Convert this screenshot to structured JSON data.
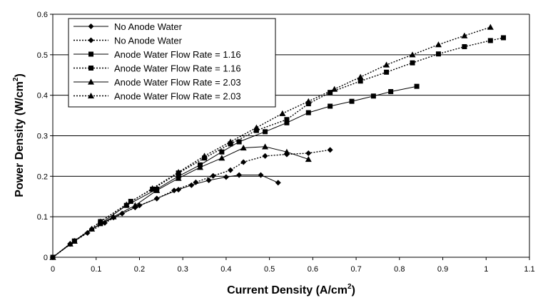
{
  "chart_data": {
    "type": "line",
    "xlabel": "Current Density (A/cm",
    "xlabel_sup": "2",
    "xlabel_end": ")",
    "ylabel": "Power Density (W/cm",
    "ylabel_sup": "2",
    "ylabel_end": ")",
    "xlim": [
      0,
      1.1
    ],
    "ylim": [
      0,
      0.6
    ],
    "x_ticks": [
      "0",
      "0.1",
      "0.2",
      "0.3",
      "0.4",
      "0.5",
      "0.6",
      "0.7",
      "0.8",
      "0.9",
      "1",
      "1.1"
    ],
    "y_ticks": [
      "0",
      "0.1",
      "0.2",
      "0.3",
      "0.4",
      "0.5",
      "0.6"
    ],
    "grid": "horizontal",
    "legend_position": "top-left",
    "series": [
      {
        "name": "No Anode Water",
        "marker": "diamond",
        "line": "solid",
        "x": [
          0,
          0.04,
          0.09,
          0.14,
          0.19,
          0.24,
          0.29,
          0.32,
          0.36,
          0.4,
          0.43,
          0.48,
          0.52
        ],
        "y": [
          0,
          0.033,
          0.07,
          0.098,
          0.123,
          0.145,
          0.167,
          0.178,
          0.19,
          0.198,
          0.203,
          0.203,
          0.184
        ]
      },
      {
        "name": "No Anode Water",
        "marker": "diamond",
        "line": "dotted",
        "x": [
          0,
          0.04,
          0.08,
          0.12,
          0.16,
          0.2,
          0.24,
          0.28,
          0.33,
          0.37,
          0.41,
          0.44,
          0.49,
          0.54,
          0.59,
          0.64
        ],
        "y": [
          0,
          0.033,
          0.06,
          0.085,
          0.108,
          0.128,
          0.145,
          0.165,
          0.185,
          0.201,
          0.215,
          0.235,
          0.25,
          0.254,
          0.257,
          0.265
        ]
      },
      {
        "name": "Anode Water Flow Rate = 1.16",
        "marker": "square",
        "line": "solid",
        "x": [
          0,
          0.05,
          0.11,
          0.17,
          0.24,
          0.29,
          0.34,
          0.39,
          0.43,
          0.49,
          0.54,
          0.59,
          0.64,
          0.69,
          0.74,
          0.78,
          0.84
        ],
        "y": [
          0,
          0.04,
          0.083,
          0.128,
          0.168,
          0.2,
          0.228,
          0.26,
          0.285,
          0.31,
          0.332,
          0.357,
          0.373,
          0.385,
          0.398,
          0.409,
          0.422
        ]
      },
      {
        "name": "Anode Water Flow Rate = 1.16",
        "marker": "square",
        "line": "dotted",
        "x": [
          0,
          0.05,
          0.11,
          0.18,
          0.23,
          0.29,
          0.35,
          0.41,
          0.47,
          0.54,
          0.59,
          0.64,
          0.71,
          0.77,
          0.83,
          0.89,
          0.95,
          1.01,
          1.04
        ],
        "y": [
          0,
          0.04,
          0.088,
          0.138,
          0.168,
          0.208,
          0.245,
          0.28,
          0.313,
          0.34,
          0.379,
          0.407,
          0.435,
          0.457,
          0.48,
          0.502,
          0.52,
          0.535,
          0.542
        ]
      },
      {
        "name": "Anode Water Flow Rate = 2.03",
        "marker": "triangle",
        "line": "solid",
        "x": [
          0,
          0.04,
          0.09,
          0.14,
          0.19,
          0.24,
          0.29,
          0.34,
          0.39,
          0.44,
          0.49,
          0.54,
          0.59
        ],
        "y": [
          0,
          0.033,
          0.07,
          0.1,
          0.128,
          0.165,
          0.195,
          0.222,
          0.245,
          0.27,
          0.273,
          0.26,
          0.242
        ]
      },
      {
        "name": "Anode Water Flow Rate = 2.03",
        "marker": "triangle",
        "line": "dotted",
        "x": [
          0,
          0.05,
          0.11,
          0.17,
          0.23,
          0.29,
          0.35,
          0.41,
          0.47,
          0.53,
          0.59,
          0.65,
          0.71,
          0.77,
          0.83,
          0.89,
          0.95,
          1.01
        ],
        "y": [
          0,
          0.04,
          0.088,
          0.13,
          0.17,
          0.21,
          0.25,
          0.285,
          0.32,
          0.355,
          0.385,
          0.415,
          0.445,
          0.475,
          0.5,
          0.525,
          0.547,
          0.568
        ]
      }
    ]
  }
}
